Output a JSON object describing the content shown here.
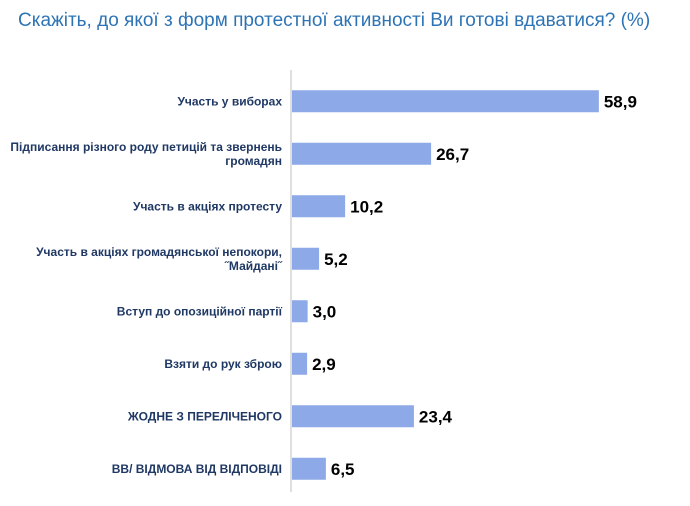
{
  "title": "Скажіть, до якої з форм протестної активності Ви готові вдаватися? (%)",
  "colors": {
    "title": "#2e74b5",
    "bar": "#8ea9e8",
    "label": "#1f3864",
    "axis": "#bfbfbf"
  },
  "chart_data": {
    "type": "bar",
    "orientation": "horizontal",
    "title": "Скажіть, до якої з форм протестної активності Ви готові вдаватися? (%)",
    "categories": [
      [
        "Участь у виборах"
      ],
      [
        "Підписання різного роду петицій та звернень",
        "громадян"
      ],
      [
        "Участь в акціях протесту"
      ],
      [
        "Участь в акціях громадянської непокори,",
        "˝Майдані˝"
      ],
      [
        "Вступ до опозиційної партії"
      ],
      [
        "Взяти до рук зброю"
      ],
      [
        "ЖОДНЕ З ПЕРЕЛІЧЕНОГО"
      ],
      [
        "ВВ/ ВІДМОВА ВІД ВІДПОВІДІ"
      ]
    ],
    "values": [
      58.9,
      26.7,
      10.2,
      5.2,
      3.0,
      2.9,
      23.4,
      6.5
    ],
    "value_labels": [
      "58,9",
      "26,7",
      "10,2",
      "5,2",
      "3,0",
      "2,9",
      "23,4",
      "6,5"
    ],
    "xlim": [
      0,
      62
    ],
    "grid": false,
    "legend": "none"
  }
}
